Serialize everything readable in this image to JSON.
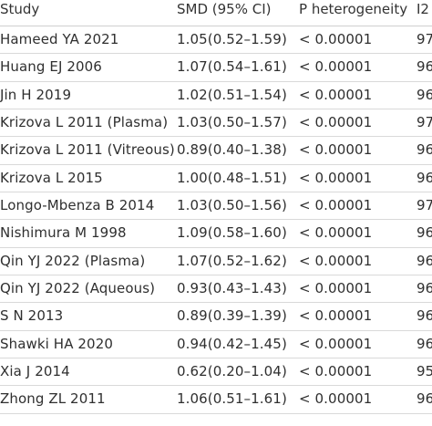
{
  "table": {
    "headers": {
      "study": "Study",
      "smd": "SMD (95% CI)",
      "p": "P heterogeneity",
      "i2": "I2"
    },
    "rows": [
      {
        "study": "Hameed YA 2021",
        "smd": "1.05(0.52–1.59)",
        "p": "< 0.00001",
        "i2": "97"
      },
      {
        "study": "Huang EJ 2006",
        "smd": "1.07(0.54–1.61)",
        "p": "< 0.00001",
        "i2": "96"
      },
      {
        "study": "Jin H 2019",
        "smd": "1.02(0.51–1.54)",
        "p": "< 0.00001",
        "i2": "96"
      },
      {
        "study": "Krizova L 2011 (Plasma)",
        "smd": "1.03(0.50–1.57)",
        "p": "< 0.00001",
        "i2": "97"
      },
      {
        "study": "Krizova L 2011 (Vitreous)",
        "smd": "0.89(0.40–1.38)",
        "p": "< 0.00001",
        "i2": "96"
      },
      {
        "study": "Krizova L 2015",
        "smd": "1.00(0.48–1.51)",
        "p": "< 0.00001",
        "i2": "96"
      },
      {
        "study": "Longo-Mbenza B 2014",
        "smd": "1.03(0.50–1.56)",
        "p": "< 0.00001",
        "i2": "97"
      },
      {
        "study": "Nishimura M 1998",
        "smd": "1.09(0.58–1.60)",
        "p": "< 0.00001",
        "i2": "96"
      },
      {
        "study": "Qin YJ 2022 (Plasma)",
        "smd": "1.07(0.52–1.62)",
        "p": "< 0.00001",
        "i2": "96"
      },
      {
        "study": "Qin YJ 2022 (Aqueous)",
        "smd": "0.93(0.43–1.43)",
        "p": "< 0.00001",
        "i2": "96"
      },
      {
        "study": "S N 2013",
        "smd": "0.89(0.39–1.39)",
        "p": "< 0.00001",
        "i2": "96"
      },
      {
        "study": "Shawki HA 2020",
        "smd": "0.94(0.42–1.45)",
        "p": "< 0.00001",
        "i2": "96"
      },
      {
        "study": "Xia J 2014",
        "smd": "0.62(0.20–1.04)",
        "p": "< 0.00001",
        "i2": "95"
      },
      {
        "study": "Zhong ZL 2011",
        "smd": "1.06(0.51–1.61)",
        "p": "< 0.00001",
        "i2": "96"
      }
    ]
  }
}
